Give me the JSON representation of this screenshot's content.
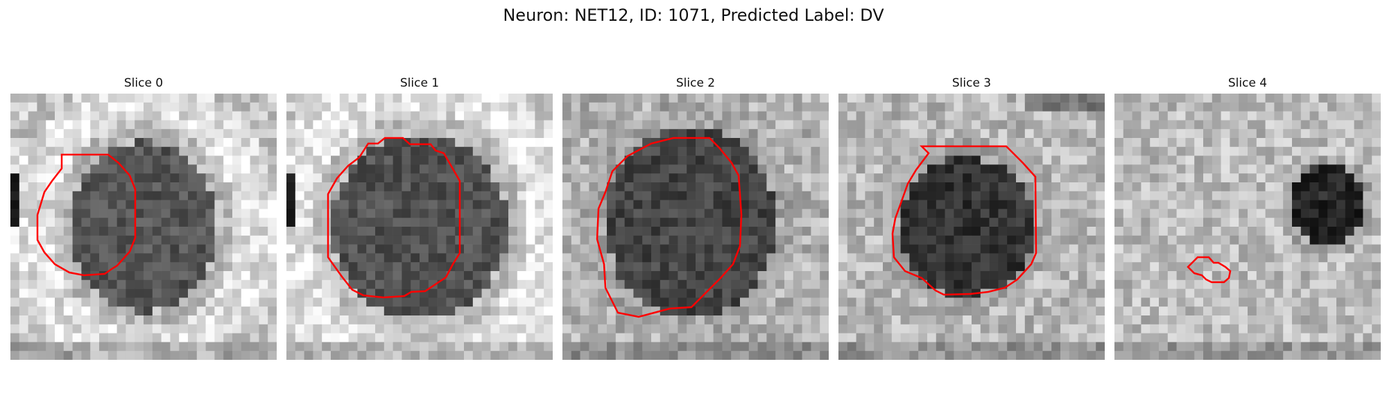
{
  "figure": {
    "title": "Neuron: NET12, ID: 1071, Predicted Label: DV"
  },
  "contour_color": "#ff0000",
  "colormap": "grayscale",
  "slices": [
    {
      "title": "Slice 0",
      "blob": "center",
      "bg": "bright-ring",
      "contour": "large-octagon"
    },
    {
      "title": "Slice 1",
      "blob": "center",
      "bg": "bright-ring",
      "contour": "large-octagon"
    },
    {
      "title": "Slice 2",
      "blob": "center",
      "bg": "mottled",
      "contour": "large-octagon"
    },
    {
      "title": "Slice 3",
      "blob": "center-small",
      "bg": "mottled",
      "contour": "medium-octagon"
    },
    {
      "title": "Slice 4",
      "blob": "upper-right",
      "bg": "mottled-bright",
      "contour": "small-lobe"
    }
  ]
}
